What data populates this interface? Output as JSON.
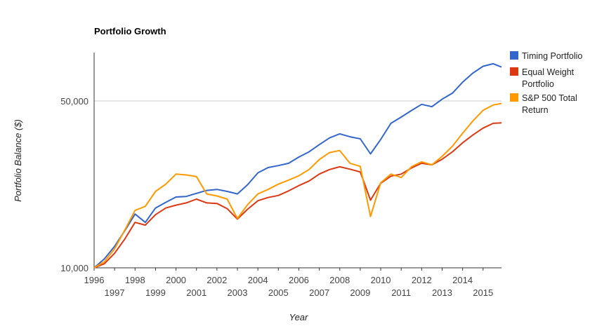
{
  "chart_data": {
    "type": "line",
    "title": "Portfolio Growth",
    "xlabel": "Year",
    "ylabel": "Portfolio Balance ($)",
    "y_scale": "log",
    "ylim": [
      10000,
      80000
    ],
    "xlim": [
      1996.0,
      2015.9
    ],
    "y_ticks": [
      {
        "value": 10000,
        "label": "10,000"
      },
      {
        "value": 50000,
        "label": "50,000"
      }
    ],
    "x_ticks": [
      "1996",
      "1997",
      "1998",
      "1999",
      "2000",
      "2001",
      "2002",
      "2003",
      "2004",
      "2005",
      "2006",
      "2007",
      "2008",
      "2009",
      "2010",
      "2011",
      "2012",
      "2013",
      "2014",
      "2015"
    ],
    "grid": true,
    "legend_position": "right",
    "x": [
      1996.0,
      1996.5,
      1997.0,
      1997.5,
      1998.0,
      1998.5,
      1999.0,
      1999.5,
      2000.0,
      2000.5,
      2001.0,
      2001.5,
      2002.0,
      2002.5,
      2003.0,
      2003.5,
      2004.0,
      2004.5,
      2005.0,
      2005.5,
      2006.0,
      2006.5,
      2007.0,
      2007.5,
      2008.0,
      2008.5,
      2009.0,
      2009.5,
      2010.0,
      2010.5,
      2011.0,
      2011.5,
      2012.0,
      2012.5,
      2013.0,
      2013.5,
      2014.0,
      2014.5,
      2015.0,
      2015.5,
      2015.9
    ],
    "series": [
      {
        "name": "Timing Portfolio",
        "color": "#3366cc",
        "values": [
          10000,
          10900,
          12300,
          14300,
          16800,
          15500,
          17800,
          18800,
          19800,
          19900,
          20500,
          21100,
          21300,
          20900,
          20400,
          22300,
          25000,
          26300,
          26800,
          27400,
          29100,
          30600,
          32800,
          35000,
          36400,
          35400,
          34700,
          30000,
          34500,
          40300,
          42800,
          45600,
          48400,
          47300,
          50900,
          53900,
          59900,
          65400,
          69900,
          71600,
          69300
        ]
      },
      {
        "name": "Equal Weight Portfolio",
        "color": "#dc3912",
        "values": [
          10000,
          10400,
          11500,
          13200,
          15500,
          15100,
          16700,
          17800,
          18300,
          18700,
          19400,
          18700,
          18600,
          17700,
          16000,
          17600,
          19100,
          19700,
          20100,
          21000,
          22100,
          23100,
          24700,
          25800,
          26500,
          25900,
          25200,
          19200,
          22600,
          24200,
          24700,
          26200,
          27400,
          27000,
          28500,
          30600,
          33400,
          36000,
          38500,
          40300,
          40500
        ]
      },
      {
        "name": "S&P 500 Total Return",
        "color": "#ff9900",
        "values": [
          10000,
          10600,
          12000,
          14400,
          17400,
          18100,
          20900,
          22400,
          24700,
          24500,
          24100,
          20400,
          20000,
          19400,
          16100,
          18400,
          20400,
          21300,
          22400,
          23300,
          24300,
          25800,
          28400,
          30400,
          31000,
          27400,
          26600,
          16400,
          22700,
          24700,
          23900,
          26500,
          27800,
          27000,
          29300,
          32300,
          36600,
          41200,
          45700,
          48100,
          48800
        ]
      }
    ]
  }
}
